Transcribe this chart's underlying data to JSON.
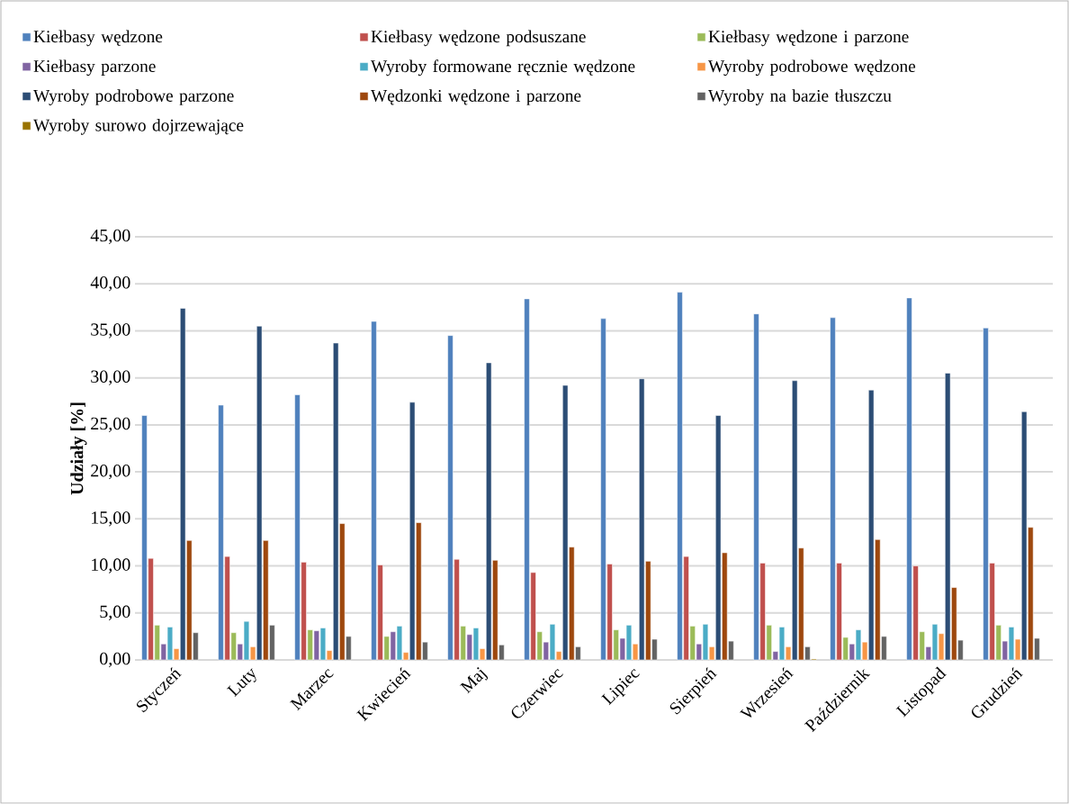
{
  "chart_data": {
    "type": "bar",
    "ylabel": "Udziały [%]",
    "categories": [
      "Styczeń",
      "Luty",
      "Marzec",
      "Kwiecień",
      "Maj",
      "Czerwiec",
      "Lipiec",
      "Sierpień",
      "Wrzesień",
      "Październik",
      "Listopad",
      "Grudzień"
    ],
    "series": [
      {
        "name": "Kiełbasy wędzone",
        "color": "#4f81bd",
        "values": [
          26.0,
          27.1,
          28.2,
          36.0,
          34.5,
          38.4,
          36.3,
          39.1,
          36.8,
          36.4,
          38.5,
          35.3
        ]
      },
      {
        "name": "Kiełbasy wędzone podsuszane",
        "color": "#c0504d",
        "values": [
          10.8,
          11.0,
          10.4,
          10.1,
          10.7,
          9.3,
          10.2,
          11.0,
          10.3,
          10.3,
          10.0,
          10.3
        ]
      },
      {
        "name": "Kiełbasy wędzone i parzone",
        "color": "#9bbb59",
        "values": [
          3.7,
          2.9,
          3.2,
          2.5,
          3.6,
          3.0,
          3.2,
          3.6,
          3.7,
          2.4,
          3.0,
          3.7
        ]
      },
      {
        "name": "Kiełbasy parzone",
        "color": "#8064a2",
        "values": [
          1.7,
          1.7,
          3.1,
          3.0,
          2.7,
          1.9,
          2.3,
          1.7,
          0.9,
          1.7,
          1.4,
          2.0
        ]
      },
      {
        "name": "Wyroby formowane ręcznie wędzone",
        "color": "#4bacc6",
        "values": [
          3.5,
          4.1,
          3.4,
          3.6,
          3.4,
          3.8,
          3.7,
          3.8,
          3.5,
          3.2,
          3.8,
          3.5
        ]
      },
      {
        "name": "Wyroby podrobowe wędzone",
        "color": "#f79646",
        "values": [
          1.2,
          1.4,
          1.0,
          0.8,
          1.2,
          0.9,
          1.7,
          1.4,
          1.4,
          1.9,
          2.8,
          2.2
        ]
      },
      {
        "name": "Wyroby podrobowe parzone",
        "color": "#2c4d75",
        "values": [
          37.4,
          35.5,
          33.7,
          27.4,
          31.6,
          29.2,
          29.9,
          26.0,
          29.7,
          28.7,
          30.5,
          26.4
        ]
      },
      {
        "name": "Wędzonki wędzone i parzone",
        "color": "#9e480e",
        "values": [
          12.7,
          12.7,
          14.5,
          14.6,
          10.6,
          12.0,
          10.5,
          11.4,
          11.9,
          12.8,
          7.7,
          14.1
        ]
      },
      {
        "name": "Wyroby na bazie tłuszczu",
        "color": "#636363",
        "values": [
          2.9,
          3.7,
          2.5,
          1.9,
          1.6,
          1.4,
          2.2,
          2.0,
          1.4,
          2.5,
          2.1,
          2.3
        ]
      },
      {
        "name": "Wyroby surowo dojrzewające",
        "color": "#997300",
        "values": [
          null,
          null,
          null,
          null,
          null,
          null,
          null,
          null,
          0.1,
          null,
          null,
          null
        ]
      }
    ],
    "ylim": [
      0,
      45
    ],
    "yticks": [
      {
        "value": 0,
        "label": "0,00"
      },
      {
        "value": 5,
        "label": "5,00"
      },
      {
        "value": 10,
        "label": "10,00"
      },
      {
        "value": 15,
        "label": "15,00"
      },
      {
        "value": 20,
        "label": "20,00"
      },
      {
        "value": 25,
        "label": "25,00"
      },
      {
        "value": 30,
        "label": "30,00"
      },
      {
        "value": 35,
        "label": "35,00"
      },
      {
        "value": 40,
        "label": "40,00"
      },
      {
        "value": 45,
        "label": "45,00"
      }
    ],
    "grid": "y",
    "legend": "top"
  }
}
